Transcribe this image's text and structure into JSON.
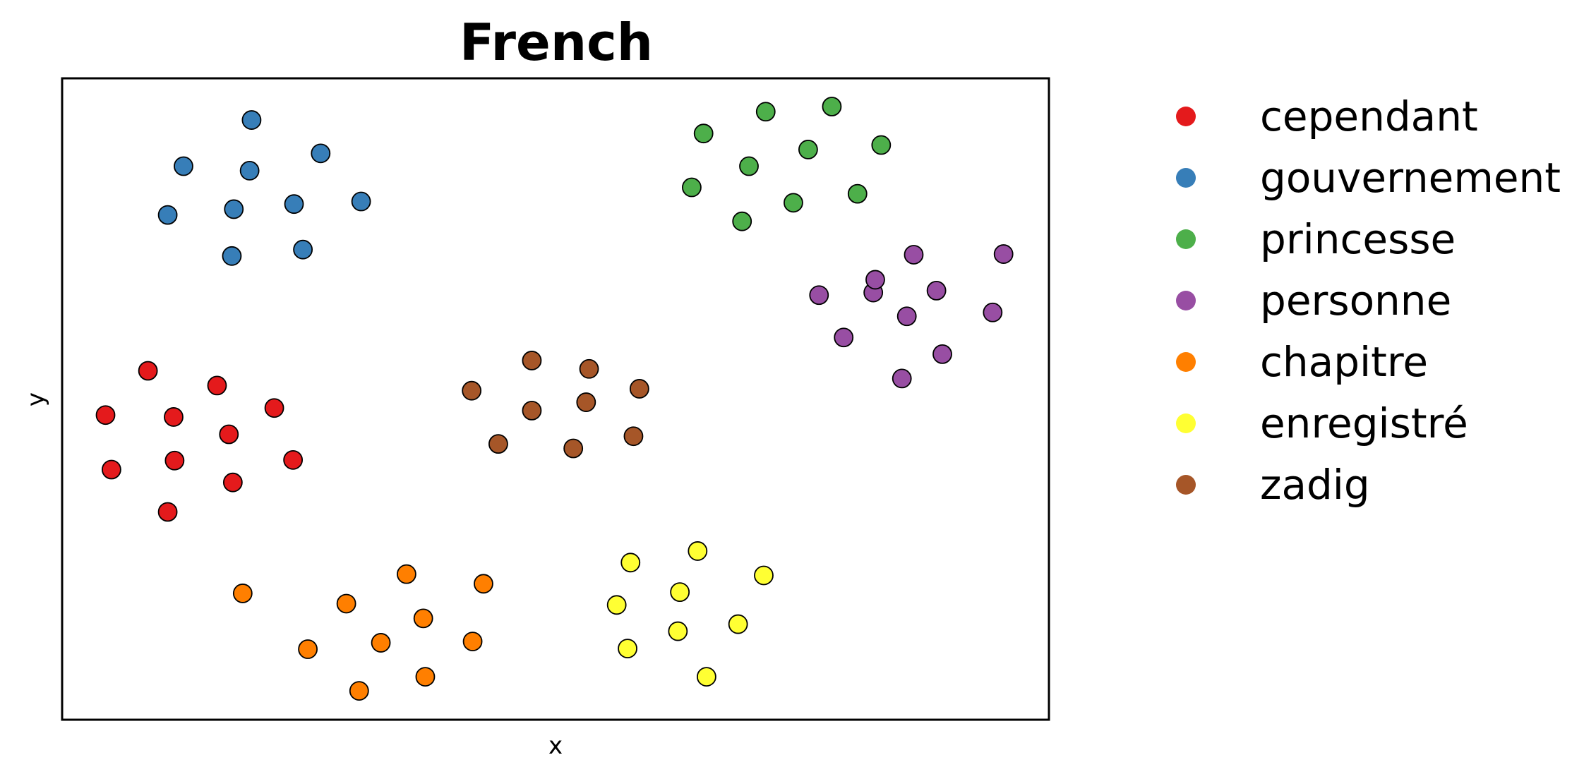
{
  "chart_data": {
    "type": "scatter",
    "title": "French",
    "xlabel": "x",
    "ylabel": "y",
    "xlim": [
      0,
      100
    ],
    "ylim": [
      0,
      100
    ],
    "grid": false,
    "ticks_visible": false,
    "legend_placement": "outside-right",
    "series": [
      {
        "name": "cependant",
        "color": "#e41a1c",
        "points": [
          [
            8.7,
            54.4
          ],
          [
            4.4,
            47.5
          ],
          [
            11.3,
            47.2
          ],
          [
            15.7,
            52.1
          ],
          [
            21.5,
            48.6
          ],
          [
            16.9,
            44.5
          ],
          [
            5.0,
            39.0
          ],
          [
            11.4,
            40.4
          ],
          [
            17.3,
            37.0
          ],
          [
            23.4,
            40.5
          ],
          [
            10.7,
            32.4
          ]
        ]
      },
      {
        "name": "gouvernement",
        "color": "#377eb8",
        "points": [
          [
            19.2,
            93.5
          ],
          [
            12.3,
            86.3
          ],
          [
            19.0,
            85.6
          ],
          [
            26.2,
            88.3
          ],
          [
            10.7,
            78.7
          ],
          [
            17.4,
            79.6
          ],
          [
            23.5,
            80.4
          ],
          [
            30.3,
            80.8
          ],
          [
            17.2,
            72.3
          ],
          [
            24.4,
            73.3
          ]
        ]
      },
      {
        "name": "princesse",
        "color": "#4daf4a",
        "points": [
          [
            65.0,
            91.4
          ],
          [
            71.3,
            94.8
          ],
          [
            78.0,
            95.6
          ],
          [
            69.6,
            86.3
          ],
          [
            75.6,
            88.9
          ],
          [
            83.0,
            89.6
          ],
          [
            63.8,
            83.0
          ],
          [
            74.1,
            80.6
          ],
          [
            80.6,
            82.0
          ],
          [
            68.9,
            77.7
          ]
        ]
      },
      {
        "name": "personne",
        "color": "#984ea3",
        "points": [
          [
            86.3,
            72.5
          ],
          [
            95.4,
            72.6
          ],
          [
            82.2,
            66.6
          ],
          [
            82.4,
            68.6
          ],
          [
            88.6,
            66.9
          ],
          [
            94.3,
            63.5
          ],
          [
            76.7,
            66.2
          ],
          [
            79.2,
            59.6
          ],
          [
            89.2,
            57.0
          ],
          [
            85.1,
            53.2
          ],
          [
            85.6,
            62.9
          ]
        ]
      },
      {
        "name": "chapitre",
        "color": "#ff7f00",
        "points": [
          [
            18.3,
            19.7
          ],
          [
            34.9,
            22.7
          ],
          [
            42.7,
            21.2
          ],
          [
            28.8,
            18.1
          ],
          [
            36.6,
            15.8
          ],
          [
            24.9,
            11.0
          ],
          [
            32.3,
            12.0
          ],
          [
            41.6,
            12.2
          ],
          [
            30.1,
            4.5
          ],
          [
            36.8,
            6.7
          ]
        ]
      },
      {
        "name": "enregistré",
        "color": "#ffff33",
        "points": [
          [
            57.6,
            24.5
          ],
          [
            64.4,
            26.3
          ],
          [
            71.1,
            22.5
          ],
          [
            56.2,
            17.9
          ],
          [
            62.6,
            19.9
          ],
          [
            68.5,
            14.9
          ],
          [
            57.3,
            11.1
          ],
          [
            62.4,
            13.8
          ],
          [
            65.3,
            6.7
          ]
        ]
      },
      {
        "name": "zadig",
        "color": "#a65628",
        "points": [
          [
            47.6,
            56.0
          ],
          [
            53.4,
            54.7
          ],
          [
            41.5,
            51.3
          ],
          [
            58.5,
            51.6
          ],
          [
            47.6,
            48.2
          ],
          [
            53.1,
            49.5
          ],
          [
            44.2,
            43.0
          ],
          [
            51.8,
            42.3
          ],
          [
            57.9,
            44.2
          ]
        ]
      }
    ]
  }
}
